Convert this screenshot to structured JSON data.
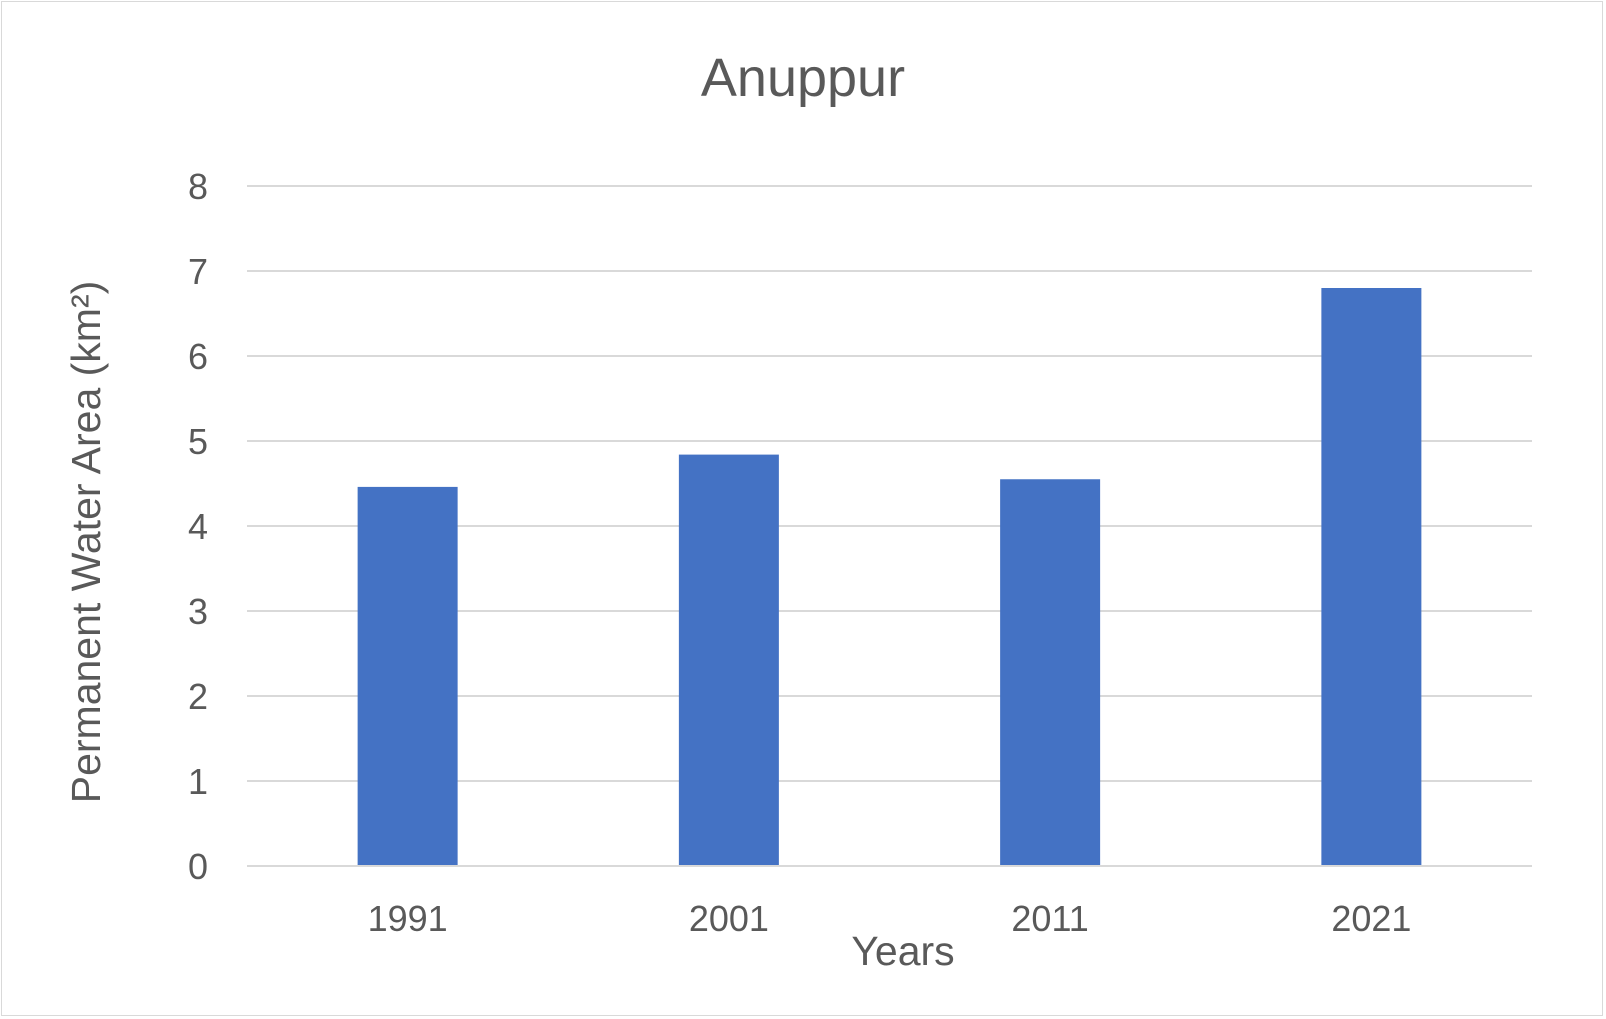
{
  "chart_data": {
    "type": "bar",
    "title": "Anuppur",
    "xlabel": "Years",
    "ylabel": "Permanent Water Area (km²)",
    "categories": [
      "1991",
      "2001",
      "2011",
      "2021"
    ],
    "values": [
      4.46,
      4.84,
      4.55,
      6.8
    ],
    "ylim": [
      0,
      8
    ],
    "yticks": [
      0,
      1,
      2,
      3,
      4,
      5,
      6,
      7,
      8
    ],
    "grid": true,
    "legend": "none",
    "bar_color": "#4472c4",
    "grid_color": "#d9d9d9"
  }
}
